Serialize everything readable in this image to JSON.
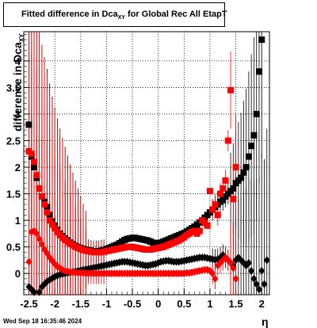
{
  "chart_data": {
    "type": "scatter",
    "title": "Fitted difference in Dca",
    "title_subscript": "XY",
    "title_suffix": " for Global Rec All EtapT",
    "xlabel": "η",
    "ylabel": "difference in Dca",
    "ylabel_subscript": "XY",
    "xlim": [
      -2.6,
      2.15
    ],
    "ylim": [
      -0.4,
      4.55
    ],
    "grid": true,
    "x_ticks": [
      -2.5,
      -2,
      -1.5,
      -1,
      -0.5,
      0,
      0.5,
      1,
      1.5,
      2
    ],
    "x_tick_labels": [
      "-2.5",
      "-2",
      "-1.5",
      "-1",
      "-0.5",
      "0",
      "0.5",
      "1",
      "1.5",
      "2"
    ],
    "y_ticks": [
      0,
      0.5,
      1,
      1.5,
      2,
      2.5,
      3,
      3.5,
      4
    ],
    "y_tick_labels": [
      "0",
      "0.5",
      "1",
      "1.5",
      "2",
      "2.5",
      "3",
      "3.5",
      "4"
    ],
    "series": [
      {
        "marker": "square",
        "color": "#000000",
        "x": [
          -2.5,
          -2.45,
          -2.4,
          -2.35,
          -2.3,
          -2.25,
          -2.2,
          -2.15,
          -2.1,
          -2.05,
          -2.0,
          -1.95,
          -1.9,
          -1.85,
          -1.8,
          -1.75,
          -1.7,
          -1.65,
          -1.6,
          -1.55,
          -1.5,
          -1.45,
          -1.4,
          -1.35,
          -1.3,
          -1.25,
          -1.2,
          -1.15,
          -1.1,
          -1.05,
          -1.0,
          -0.95,
          -0.9,
          -0.85,
          -0.8,
          -0.75,
          -0.7,
          -0.65,
          -0.6,
          -0.55,
          -0.5,
          -0.45,
          -0.4,
          -0.35,
          -0.3,
          -0.25,
          -0.2,
          -0.15,
          -0.1,
          -0.05,
          0.0,
          0.05,
          0.1,
          0.15,
          0.2,
          0.25,
          0.3,
          0.35,
          0.4,
          0.45,
          0.5,
          0.55,
          0.6,
          0.65,
          0.7,
          0.75,
          0.8,
          0.85,
          0.9,
          0.95,
          1.0,
          1.05,
          1.1,
          1.15,
          1.2,
          1.25,
          1.3,
          1.35,
          1.4,
          1.45,
          1.5,
          1.55,
          1.6,
          1.65,
          1.7,
          1.75,
          1.8,
          1.85,
          1.9,
          1.95,
          2.0
        ],
        "y": [
          2.8,
          2.2,
          2.0,
          1.8,
          1.6,
          1.45,
          1.35,
          1.25,
          1.1,
          0.98,
          0.9,
          0.82,
          0.75,
          0.7,
          0.66,
          0.62,
          0.58,
          0.55,
          0.52,
          0.5,
          0.48,
          0.46,
          0.45,
          0.44,
          0.43,
          0.42,
          0.42,
          0.42,
          0.43,
          0.44,
          0.46,
          0.48,
          0.5,
          0.52,
          0.54,
          0.57,
          0.6,
          0.63,
          0.65,
          0.66,
          0.67,
          0.67,
          0.66,
          0.65,
          0.64,
          0.63,
          0.62,
          0.6,
          0.58,
          0.57,
          0.57,
          0.58,
          0.6,
          0.62,
          0.64,
          0.66,
          0.68,
          0.7,
          0.72,
          0.74,
          0.76,
          0.79,
          0.82,
          0.85,
          0.88,
          0.92,
          0.96,
          1.0,
          1.05,
          1.1,
          1.15,
          1.2,
          1.25,
          1.3,
          1.35,
          1.38,
          1.45,
          1.5,
          1.55,
          1.6,
          1.7,
          1.75,
          1.8,
          1.9,
          2.0,
          2.2,
          2.4,
          2.6,
          3.0,
          3.8,
          4.4
        ]
      },
      {
        "marker": "diamond",
        "color": "#000000",
        "x": [
          -2.5,
          -2.45,
          -2.4,
          -2.35,
          -2.3,
          -2.25,
          -2.2,
          -2.15,
          -2.1,
          -2.05,
          -2.0,
          -1.95,
          -1.9,
          -1.85,
          -1.8,
          -1.75,
          -1.7,
          -1.65,
          -1.6,
          -1.55,
          -1.5,
          -1.45,
          -1.4,
          -1.35,
          -1.3,
          -1.25,
          -1.2,
          -1.15,
          -1.1,
          -1.05,
          -1.0,
          -0.95,
          -0.9,
          -0.85,
          -0.8,
          -0.75,
          -0.7,
          -0.65,
          -0.6,
          -0.55,
          -0.5,
          -0.45,
          -0.4,
          -0.35,
          -0.3,
          -0.25,
          -0.2,
          -0.15,
          -0.1,
          -0.05,
          0.0,
          0.05,
          0.1,
          0.15,
          0.2,
          0.25,
          0.3,
          0.35,
          0.4,
          0.45,
          0.5,
          0.55,
          0.6,
          0.65,
          0.7,
          0.75,
          0.8,
          0.85,
          0.9,
          0.95,
          1.0,
          1.05,
          1.1,
          1.15,
          1.2,
          1.25,
          1.3,
          1.35,
          1.4,
          1.45,
          1.5,
          1.55,
          1.6,
          1.65,
          1.7,
          1.75,
          1.8,
          1.85,
          1.9,
          1.95,
          2.0,
          2.05,
          2.1
        ],
        "y": [
          -0.25,
          -0.3,
          -0.35,
          -0.45,
          -0.35,
          -0.25,
          -0.2,
          -0.15,
          -0.12,
          -0.09,
          -0.06,
          -0.04,
          -0.02,
          -0.01,
          0.0,
          0.01,
          0.02,
          0.03,
          0.04,
          0.05,
          0.06,
          0.07,
          0.08,
          0.09,
          0.1,
          0.11,
          0.12,
          0.13,
          0.14,
          0.15,
          0.16,
          0.17,
          0.18,
          0.19,
          0.2,
          0.21,
          0.22,
          0.22,
          0.22,
          0.21,
          0.2,
          0.19,
          0.18,
          0.17,
          0.16,
          0.15,
          0.15,
          0.16,
          0.17,
          0.18,
          0.2,
          0.22,
          0.23,
          0.24,
          0.24,
          0.23,
          0.22,
          0.22,
          0.22,
          0.23,
          0.24,
          0.25,
          0.26,
          0.27,
          0.28,
          0.29,
          0.3,
          0.3,
          0.3,
          0.29,
          0.28,
          0.27,
          0.26,
          0.27,
          0.3,
          0.35,
          0.3,
          0.25,
          0.2,
          0.15,
          0.25,
          0.3,
          0.25,
          0.2,
          0.15,
          0.2,
          0.05,
          -0.1,
          -0.2,
          -0.3,
          0.05,
          -0.2,
          0.25
        ]
      },
      {
        "marker": "square",
        "color": "#ff0000",
        "x": [
          -2.5,
          -2.45,
          -2.4,
          -2.35,
          -2.3,
          -2.25,
          -2.2,
          -2.15,
          -2.1,
          -2.05,
          -2.0,
          -1.95,
          -1.9,
          -1.85,
          -1.8,
          -1.75,
          -1.7,
          -1.65,
          -1.6,
          -1.55,
          -1.5,
          -1.45,
          -1.4,
          -1.35,
          -1.3,
          -1.25,
          -1.2,
          -1.15,
          -1.1,
          -1.05,
          -1.0,
          -0.95,
          -0.9,
          -0.85,
          -0.8,
          -0.75,
          -0.7,
          -0.65,
          -0.6,
          -0.55,
          -0.5,
          -0.45,
          -0.4,
          -0.35,
          -0.3,
          -0.25,
          -0.2,
          -0.15,
          -0.1,
          -0.05,
          0.0,
          0.05,
          0.1,
          0.15,
          0.2,
          0.25,
          0.3,
          0.35,
          0.4,
          0.45,
          0.5,
          0.55,
          0.6,
          0.65,
          0.7,
          0.75,
          0.8,
          0.85,
          0.9,
          0.95,
          1.0,
          1.05,
          1.1,
          1.15,
          1.2,
          1.25,
          1.3,
          1.35,
          1.4,
          1.45,
          1.5
        ],
        "y": [
          2.3,
          2.25,
          2.1,
          1.85,
          1.6,
          1.45,
          1.3,
          1.15,
          1.0,
          0.92,
          0.85,
          0.78,
          0.72,
          0.67,
          0.63,
          0.59,
          0.56,
          0.53,
          0.5,
          0.48,
          0.46,
          0.44,
          0.43,
          0.42,
          0.41,
          0.4,
          0.4,
          0.4,
          0.4,
          0.41,
          0.42,
          0.43,
          0.44,
          0.45,
          0.46,
          0.47,
          0.48,
          0.49,
          0.5,
          0.5,
          0.5,
          0.49,
          0.48,
          0.47,
          0.46,
          0.45,
          0.45,
          0.45,
          0.46,
          0.47,
          0.48,
          0.49,
          0.5,
          0.52,
          0.54,
          0.56,
          0.58,
          0.6,
          0.62,
          0.65,
          0.68,
          0.72,
          0.75,
          0.78,
          0.8,
          0.75,
          0.8,
          1.0,
          0.95,
          0.9,
          1.55,
          1.2,
          1.3,
          1.1,
          1.5,
          1.6,
          1.75,
          2.5,
          3.45,
          1.4,
          2.0
        ]
      },
      {
        "marker": "diamond",
        "color": "#ff0000",
        "x": [
          -2.5,
          -2.45,
          -2.4,
          -2.35,
          -2.3,
          -2.25,
          -2.2,
          -2.15,
          -2.1,
          -2.05,
          -2.0,
          -1.95,
          -1.9,
          -1.85,
          -1.8,
          -1.75,
          -1.7,
          -1.65,
          -1.6,
          -1.55,
          -1.5,
          -1.45,
          -1.4,
          -1.35,
          -1.3,
          -1.25,
          -1.2,
          -1.15,
          -1.1,
          -1.05,
          -1.0,
          -0.95,
          -0.9,
          -0.85,
          -0.8,
          -0.75,
          -0.7,
          -0.65,
          -0.6,
          -0.55,
          -0.5,
          -0.45,
          -0.4,
          -0.35,
          -0.3,
          -0.25,
          -0.2,
          -0.15,
          -0.1,
          -0.05,
          0.0,
          0.05,
          0.1,
          0.15,
          0.2,
          0.25,
          0.3,
          0.35,
          0.4,
          0.45,
          0.5,
          0.55,
          0.6,
          0.65,
          0.7,
          0.75,
          0.8,
          0.85,
          0.9,
          0.95,
          1.0,
          1.05,
          1.1,
          1.15,
          1.2,
          1.25,
          1.3,
          1.35,
          1.4,
          1.45,
          1.5
        ],
        "y": [
          0.22,
          0.78,
          0.8,
          0.75,
          0.65,
          0.55,
          0.45,
          0.38,
          0.3,
          0.24,
          0.18,
          0.13,
          0.1,
          0.07,
          0.05,
          0.04,
          0.03,
          0.02,
          0.02,
          0.01,
          0.01,
          0.01,
          0.0,
          0.0,
          0.0,
          0.0,
          0.0,
          0.0,
          0.0,
          0.0,
          0.0,
          0.0,
          0.0,
          0.0,
          0.0,
          0.0,
          0.0,
          0.0,
          0.0,
          0.0,
          0.0,
          0.0,
          0.0,
          0.0,
          0.0,
          0.0,
          0.0,
          0.0,
          0.0,
          0.0,
          0.0,
          0.0,
          0.0,
          0.0,
          0.0,
          0.0,
          0.0,
          0.0,
          0.0,
          0.0,
          0.0,
          0.01,
          0.01,
          0.02,
          0.03,
          0.04,
          0.05,
          0.06,
          0.07,
          0.07,
          0.05,
          0.0,
          -0.1,
          0.15,
          0.2,
          0.25,
          0.3,
          0.25,
          0.2,
          0.1,
          -0.1
        ]
      }
    ]
  },
  "footer": {
    "datestamp": "Wed Sep 18 16:35:46 2024"
  }
}
